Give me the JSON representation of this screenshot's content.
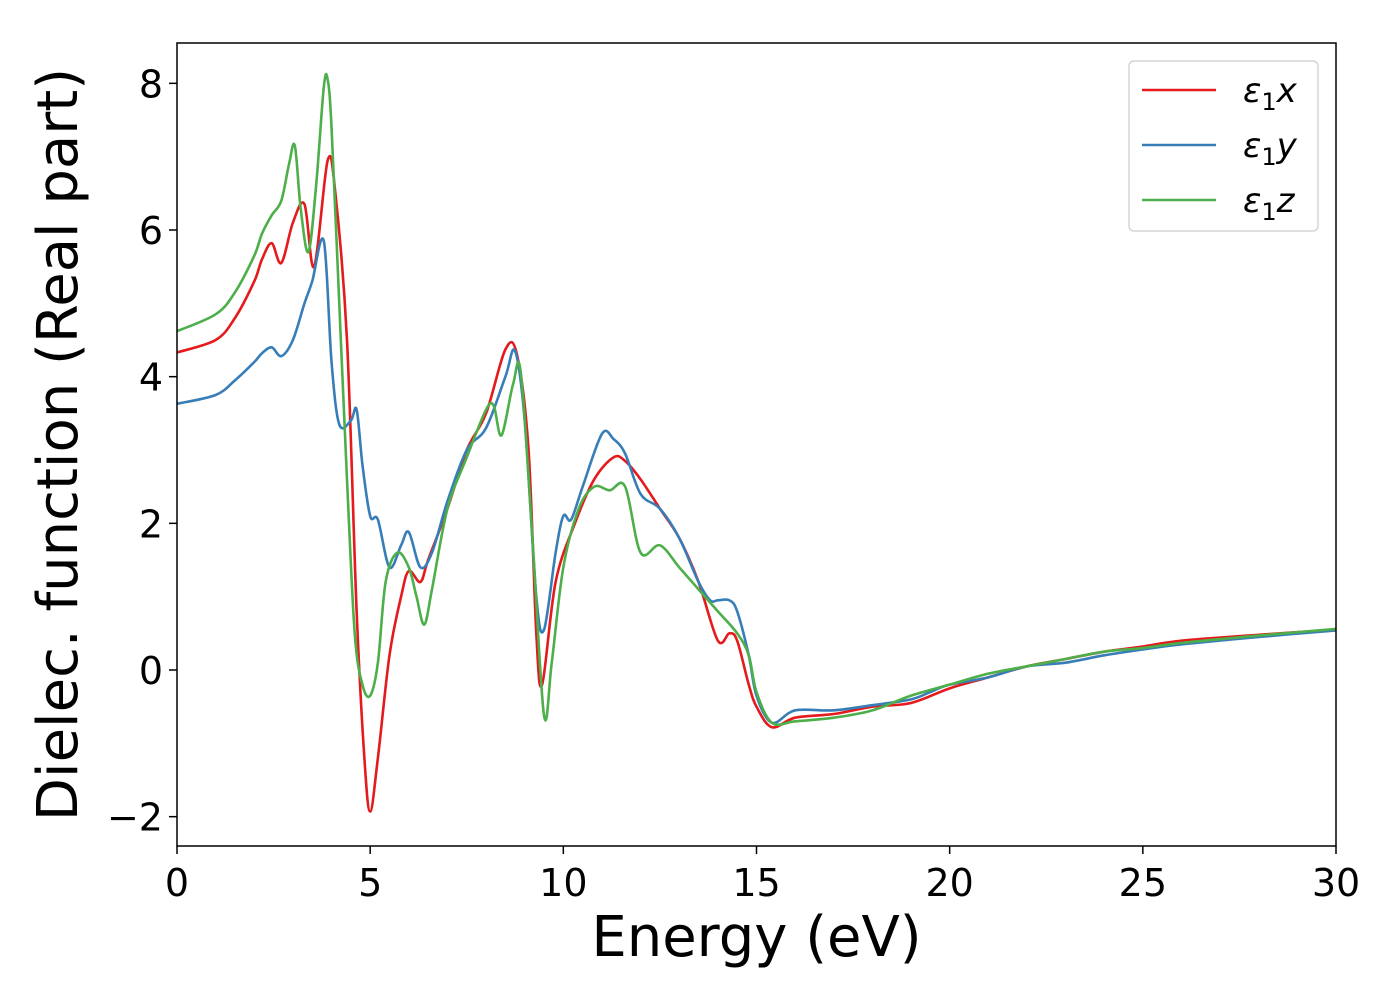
{
  "chart_data": {
    "type": "line",
    "xlabel": "Energy (eV)",
    "ylabel": "Dielec. function (Real part)",
    "xlim": [
      0,
      30
    ],
    "ylim": [
      -2.4,
      8.55
    ],
    "xticks": [
      0,
      5,
      10,
      15,
      20,
      25,
      30
    ],
    "xtick_labels": [
      "0",
      "5",
      "10",
      "15",
      "20",
      "25",
      "30"
    ],
    "yticks": [
      -2,
      0,
      2,
      4,
      6,
      8
    ],
    "ytick_labels": [
      "−2",
      "0",
      "2",
      "4",
      "6",
      "8"
    ],
    "grid": false,
    "legend_position": "top-right",
    "series": [
      {
        "name": "ε1x",
        "legend_base": "ε",
        "legend_sub": "1",
        "legend_suffix": "x",
        "color": "#e41a1c",
        "x": [
          0,
          1,
          1.5,
          2,
          2.2,
          2.45,
          2.7,
          3.0,
          3.3,
          3.55,
          3.9,
          4.1,
          4.4,
          4.65,
          4.85,
          5.0,
          5.2,
          5.5,
          5.8,
          6.0,
          6.3,
          6.5,
          7.0,
          7.5,
          8.0,
          8.5,
          8.8,
          9.1,
          9.3,
          9.45,
          9.8,
          10.3,
          10.8,
          11.3,
          11.6,
          12.0,
          12.5,
          13.0,
          13.5,
          14.0,
          14.3,
          14.5,
          14.8,
          15.0,
          15.4,
          16.0,
          17.0,
          18.0,
          19.0,
          20.0,
          21.0,
          22.0,
          23.0,
          24.0,
          25.0,
          26.0,
          28.0,
          30.0
        ],
        "y": [
          4.33,
          4.5,
          4.8,
          5.3,
          5.6,
          5.82,
          5.55,
          6.1,
          6.35,
          5.5,
          6.95,
          6.5,
          4.5,
          0.8,
          -1.2,
          -1.93,
          -1.2,
          0.2,
          1.0,
          1.35,
          1.2,
          1.5,
          2.2,
          3.0,
          3.5,
          4.37,
          4.3,
          3.0,
          0.5,
          -0.2,
          1.2,
          2.0,
          2.6,
          2.9,
          2.85,
          2.6,
          2.2,
          1.8,
          1.2,
          0.4,
          0.5,
          0.4,
          -0.2,
          -0.5,
          -0.78,
          -0.65,
          -0.6,
          -0.5,
          -0.45,
          -0.25,
          -0.1,
          0.05,
          0.15,
          0.25,
          0.32,
          0.4,
          0.48,
          0.55
        ]
      },
      {
        "name": "ε1y",
        "legend_base": "ε",
        "legend_sub": "1",
        "legend_suffix": "y",
        "color": "#377eb8",
        "x": [
          0,
          1,
          1.5,
          2,
          2.2,
          2.45,
          2.7,
          3.0,
          3.3,
          3.5,
          3.8,
          4.0,
          4.2,
          4.5,
          4.65,
          4.8,
          5.0,
          5.2,
          5.5,
          5.8,
          6.0,
          6.3,
          6.6,
          7.0,
          7.5,
          8.0,
          8.5,
          8.75,
          9.0,
          9.3,
          9.5,
          9.8,
          10.0,
          10.2,
          10.5,
          11.0,
          11.3,
          11.6,
          12.0,
          12.5,
          13.0,
          13.5,
          13.8,
          14.0,
          14.3,
          14.5,
          14.8,
          15.0,
          15.4,
          16.0,
          17.0,
          18.0,
          19.0,
          19.5,
          20.0,
          21.0,
          22.0,
          23.0,
          24.0,
          25.0,
          26.0,
          28.0,
          30.0
        ],
        "y": [
          3.63,
          3.75,
          3.95,
          4.2,
          4.32,
          4.4,
          4.28,
          4.5,
          5.0,
          5.3,
          5.85,
          4.2,
          3.35,
          3.4,
          3.55,
          2.8,
          2.1,
          2.05,
          1.4,
          1.7,
          1.88,
          1.4,
          1.6,
          2.3,
          3.0,
          3.3,
          4.0,
          4.35,
          3.4,
          1.0,
          0.55,
          1.6,
          2.1,
          2.05,
          2.5,
          3.22,
          3.15,
          2.95,
          2.4,
          2.2,
          1.8,
          1.2,
          0.95,
          0.95,
          0.95,
          0.8,
          0.2,
          -0.35,
          -0.72,
          -0.55,
          -0.55,
          -0.48,
          -0.4,
          -0.3,
          -0.2,
          -0.1,
          0.05,
          0.1,
          0.2,
          0.28,
          0.35,
          0.45,
          0.54
        ]
      },
      {
        "name": "ε1z",
        "legend_base": "ε",
        "legend_sub": "1",
        "legend_suffix": "z",
        "color": "#4daf4a",
        "x": [
          0,
          1,
          1.5,
          2,
          2.2,
          2.45,
          2.7,
          2.9,
          3.05,
          3.2,
          3.4,
          3.6,
          3.8,
          3.9,
          4.0,
          4.2,
          4.4,
          4.6,
          4.8,
          5.0,
          5.2,
          5.4,
          5.7,
          6.0,
          6.2,
          6.4,
          6.6,
          7.0,
          7.5,
          8.0,
          8.2,
          8.4,
          8.7,
          8.9,
          9.2,
          9.5,
          9.7,
          10.0,
          10.4,
          10.8,
          11.2,
          11.6,
          12.0,
          12.5,
          13.0,
          13.5,
          14.0,
          14.5,
          14.8,
          15.0,
          15.4,
          16.0,
          17.0,
          18.0,
          19.0,
          20.0,
          21.0,
          22.0,
          23.0,
          24.0,
          25.0,
          26.0,
          28.0,
          30.0
        ],
        "y": [
          4.62,
          4.85,
          5.15,
          5.65,
          5.95,
          6.2,
          6.4,
          6.9,
          7.15,
          6.3,
          5.7,
          6.6,
          7.95,
          8.05,
          7.4,
          5.0,
          2.6,
          0.5,
          -0.2,
          -0.35,
          0.1,
          1.2,
          1.6,
          1.4,
          1.0,
          0.62,
          1.1,
          2.2,
          2.9,
          3.55,
          3.6,
          3.2,
          3.9,
          4.05,
          1.8,
          -0.62,
          0.1,
          1.4,
          2.2,
          2.5,
          2.45,
          2.5,
          1.6,
          1.7,
          1.4,
          1.1,
          0.8,
          0.5,
          0.2,
          -0.3,
          -0.72,
          -0.7,
          -0.65,
          -0.55,
          -0.35,
          -0.2,
          -0.05,
          0.05,
          0.15,
          0.25,
          0.3,
          0.37,
          0.47,
          0.56
        ]
      }
    ]
  }
}
